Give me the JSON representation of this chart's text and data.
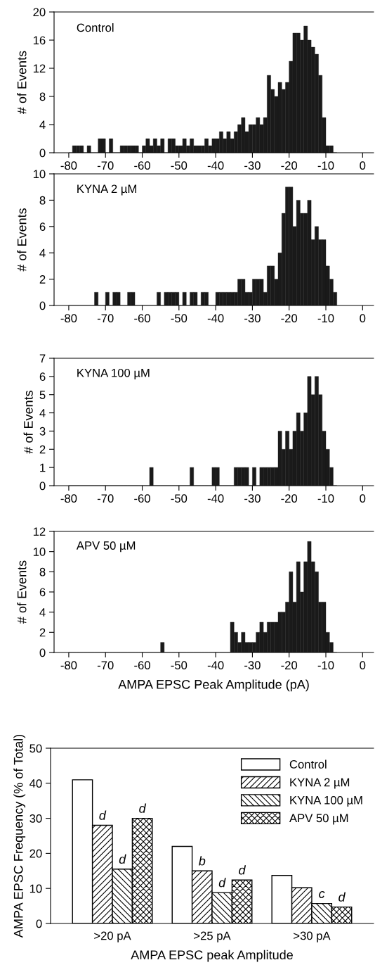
{
  "chart_data": [
    {
      "type": "histogram",
      "title": "Control",
      "ylabel": "# of Events",
      "color": "#1a1a1a",
      "bins": [
        -80,
        -79,
        -78,
        -77,
        -76,
        -75,
        -74,
        -73,
        -72,
        -71,
        -70,
        -69,
        -68,
        -67,
        -66,
        -65,
        -64,
        -63,
        -62,
        -61,
        -60,
        -59,
        -58,
        -57,
        -56,
        -55,
        -54,
        -53,
        -52,
        -51,
        -50,
        -49,
        -48,
        -47,
        -46,
        -45,
        -44,
        -43,
        -42,
        -41,
        -40,
        -39,
        -38,
        -37,
        -36,
        -35,
        -34,
        -33,
        -32,
        -31,
        -30,
        -29,
        -28,
        -27,
        -26,
        -25,
        -24,
        -23,
        -22,
        -21,
        -20,
        -19,
        -18,
        -17,
        -16,
        -15,
        -14,
        -13,
        -12,
        -11,
        -10,
        -9,
        -8,
        -7
      ],
      "values": [
        0,
        1,
        1,
        1,
        0,
        1,
        0,
        0,
        2,
        2,
        0,
        2,
        0,
        0,
        1,
        1,
        1,
        1,
        1,
        0,
        1,
        2,
        1,
        2,
        1,
        2,
        0,
        2,
        2,
        1,
        1,
        2,
        1,
        2,
        1,
        1,
        1,
        2,
        1,
        2,
        2,
        3,
        2,
        3,
        2,
        3,
        4,
        5,
        3,
        4,
        4,
        5,
        4,
        5,
        11,
        9,
        8,
        10,
        9,
        10,
        13,
        17,
        17,
        16,
        18,
        16,
        15,
        14,
        11,
        5,
        1,
        1,
        0
      ],
      "xlim": [
        -84,
        3
      ],
      "xticks": [
        -80,
        -70,
        -60,
        -50,
        -40,
        -30,
        -20,
        -10,
        0
      ],
      "ylim": [
        0,
        20
      ],
      "yticks": [
        0,
        4,
        8,
        12,
        16,
        20
      ]
    },
    {
      "type": "histogram",
      "title": "KYNA 2 µM",
      "ylabel": "# of Events",
      "color": "#1a1a1a",
      "bins": [
        -80,
        -79,
        -78,
        -77,
        -76,
        -75,
        -74,
        -73,
        -72,
        -71,
        -70,
        -69,
        -68,
        -67,
        -66,
        -65,
        -64,
        -63,
        -62,
        -61,
        -60,
        -59,
        -58,
        -57,
        -56,
        -55,
        -54,
        -53,
        -52,
        -51,
        -50,
        -49,
        -48,
        -47,
        -46,
        -45,
        -44,
        -43,
        -42,
        -41,
        -40,
        -39,
        -38,
        -37,
        -36,
        -35,
        -34,
        -33,
        -32,
        -31,
        -30,
        -29,
        -28,
        -27,
        -26,
        -25,
        -24,
        -23,
        -22,
        -21,
        -20,
        -19,
        -18,
        -17,
        -16,
        -15,
        -14,
        -13,
        -12,
        -11,
        -10,
        -9,
        -8,
        -7
      ],
      "values": [
        0,
        0,
        0,
        0,
        0,
        0,
        0,
        1,
        0,
        0,
        1,
        0,
        1,
        1,
        0,
        0,
        1,
        1,
        0,
        0,
        0,
        0,
        0,
        0,
        1,
        0,
        1,
        1,
        1,
        1,
        0,
        1,
        0,
        1,
        1,
        0,
        1,
        1,
        0,
        0,
        1,
        1,
        1,
        1,
        1,
        1,
        2,
        2,
        1,
        1,
        2,
        2,
        2,
        1,
        3,
        3,
        2,
        4,
        7,
        9,
        9,
        6,
        8,
        7,
        7,
        8,
        5,
        6,
        5,
        5,
        3,
        2,
        1
      ],
      "xlim": [
        -84,
        3
      ],
      "xticks": [
        -80,
        -70,
        -60,
        -50,
        -40,
        -30,
        -20,
        -10,
        0
      ],
      "ylim": [
        0,
        10
      ],
      "yticks": [
        0,
        2,
        4,
        6,
        8,
        10
      ]
    },
    {
      "type": "histogram",
      "title": "KYNA 100 µM",
      "ylabel": "# of Events",
      "color": "#1a1a1a",
      "bins": [
        -80,
        -79,
        -78,
        -77,
        -76,
        -75,
        -74,
        -73,
        -72,
        -71,
        -70,
        -69,
        -68,
        -67,
        -66,
        -65,
        -64,
        -63,
        -62,
        -61,
        -60,
        -59,
        -58,
        -57,
        -56,
        -55,
        -54,
        -53,
        -52,
        -51,
        -50,
        -49,
        -48,
        -47,
        -46,
        -45,
        -44,
        -43,
        -42,
        -41,
        -40,
        -39,
        -38,
        -37,
        -36,
        -35,
        -34,
        -33,
        -32,
        -31,
        -30,
        -29,
        -28,
        -27,
        -26,
        -25,
        -24,
        -23,
        -22,
        -21,
        -20,
        -19,
        -18,
        -17,
        -16,
        -15,
        -14,
        -13,
        -12,
        -11,
        -10,
        -9,
        -8,
        -7
      ],
      "values": [
        0,
        0,
        0,
        0,
        0,
        0,
        0,
        0,
        0,
        0,
        0,
        0,
        0,
        0,
        0,
        0,
        0,
        0,
        0,
        0,
        0,
        0,
        1,
        0,
        0,
        0,
        0,
        0,
        0,
        0,
        0,
        0,
        0,
        1,
        0,
        0,
        0,
        0,
        0,
        1,
        1,
        0,
        0,
        0,
        0,
        1,
        1,
        1,
        1,
        0,
        1,
        0,
        1,
        1,
        1,
        1,
        1,
        3,
        2,
        3,
        2,
        3,
        4,
        3,
        4,
        6,
        5,
        6,
        5,
        3,
        2,
        1,
        0
      ],
      "xlim": [
        -84,
        3
      ],
      "xticks": [
        -80,
        -70,
        -60,
        -50,
        -40,
        -30,
        -20,
        -10,
        0
      ],
      "ylim": [
        0,
        7
      ],
      "yticks": [
        0,
        1,
        2,
        3,
        4,
        5,
        6,
        7
      ]
    },
    {
      "type": "histogram",
      "title": "APV 50 µM",
      "ylabel": "# of Events",
      "xlabel": "AMPA EPSC Peak Amplitude (pA)",
      "color": "#1a1a1a",
      "bins": [
        -80,
        -79,
        -78,
        -77,
        -76,
        -75,
        -74,
        -73,
        -72,
        -71,
        -70,
        -69,
        -68,
        -67,
        -66,
        -65,
        -64,
        -63,
        -62,
        -61,
        -60,
        -59,
        -58,
        -57,
        -56,
        -55,
        -54,
        -53,
        -52,
        -51,
        -50,
        -49,
        -48,
        -47,
        -46,
        -45,
        -44,
        -43,
        -42,
        -41,
        -40,
        -39,
        -38,
        -37,
        -36,
        -35,
        -34,
        -33,
        -32,
        -31,
        -30,
        -29,
        -28,
        -27,
        -26,
        -25,
        -24,
        -23,
        -22,
        -21,
        -20,
        -19,
        -18,
        -17,
        -16,
        -15,
        -14,
        -13,
        -12,
        -11,
        -10,
        -9,
        -8,
        -7
      ],
      "values": [
        0,
        0,
        0,
        0,
        0,
        0,
        0,
        0,
        0,
        0,
        0,
        0,
        0,
        0,
        0,
        0,
        0,
        0,
        0,
        0,
        0,
        0,
        0,
        0,
        0,
        1,
        0,
        0,
        0,
        0,
        0,
        0,
        0,
        0,
        0,
        0,
        0,
        0,
        0,
        0,
        0,
        0,
        0,
        0,
        3,
        2,
        1,
        2,
        1,
        1,
        1,
        2,
        3,
        2,
        3,
        3,
        3,
        4,
        4,
        5,
        8,
        5,
        9,
        6,
        9,
        11,
        9,
        8,
        5,
        5,
        2,
        1,
        0
      ],
      "xlim": [
        -84,
        3
      ],
      "xticks": [
        -80,
        -70,
        -60,
        -50,
        -40,
        -30,
        -20,
        -10,
        0
      ],
      "ylim": [
        0,
        12
      ],
      "yticks": [
        0,
        2,
        4,
        6,
        8,
        10,
        12
      ]
    },
    {
      "type": "bar",
      "ylabel": "AMPA EPSC Frequency (% of Total)",
      "xlabel": "AMPA EPSC peak Amplitude",
      "categories": [
        ">20 pA",
        ">25 pA",
        ">30 pA"
      ],
      "ylim": [
        0,
        50
      ],
      "yticks": [
        0,
        10,
        20,
        30,
        40,
        50
      ],
      "legend": "top right",
      "series": [
        {
          "name": "Control",
          "color": "#ffffff",
          "values": [
            41,
            22,
            13.7
          ]
        },
        {
          "name": "KYNA 2 µM",
          "color": "#000000",
          "values": [
            28,
            15,
            10.2
          ],
          "value_labels": [
            "d",
            "b",
            null
          ]
        },
        {
          "name": "KYNA 100 µM",
          "color": "#000000",
          "values": [
            15.5,
            8.8,
            5.7
          ],
          "value_labels": [
            "d",
            "d",
            "c"
          ]
        },
        {
          "name": "APV 50 µM",
          "color": "#000000",
          "values": [
            30,
            12.4,
            4.7
          ],
          "value_labels": [
            "d",
            "d",
            "d"
          ]
        }
      ]
    }
  ]
}
